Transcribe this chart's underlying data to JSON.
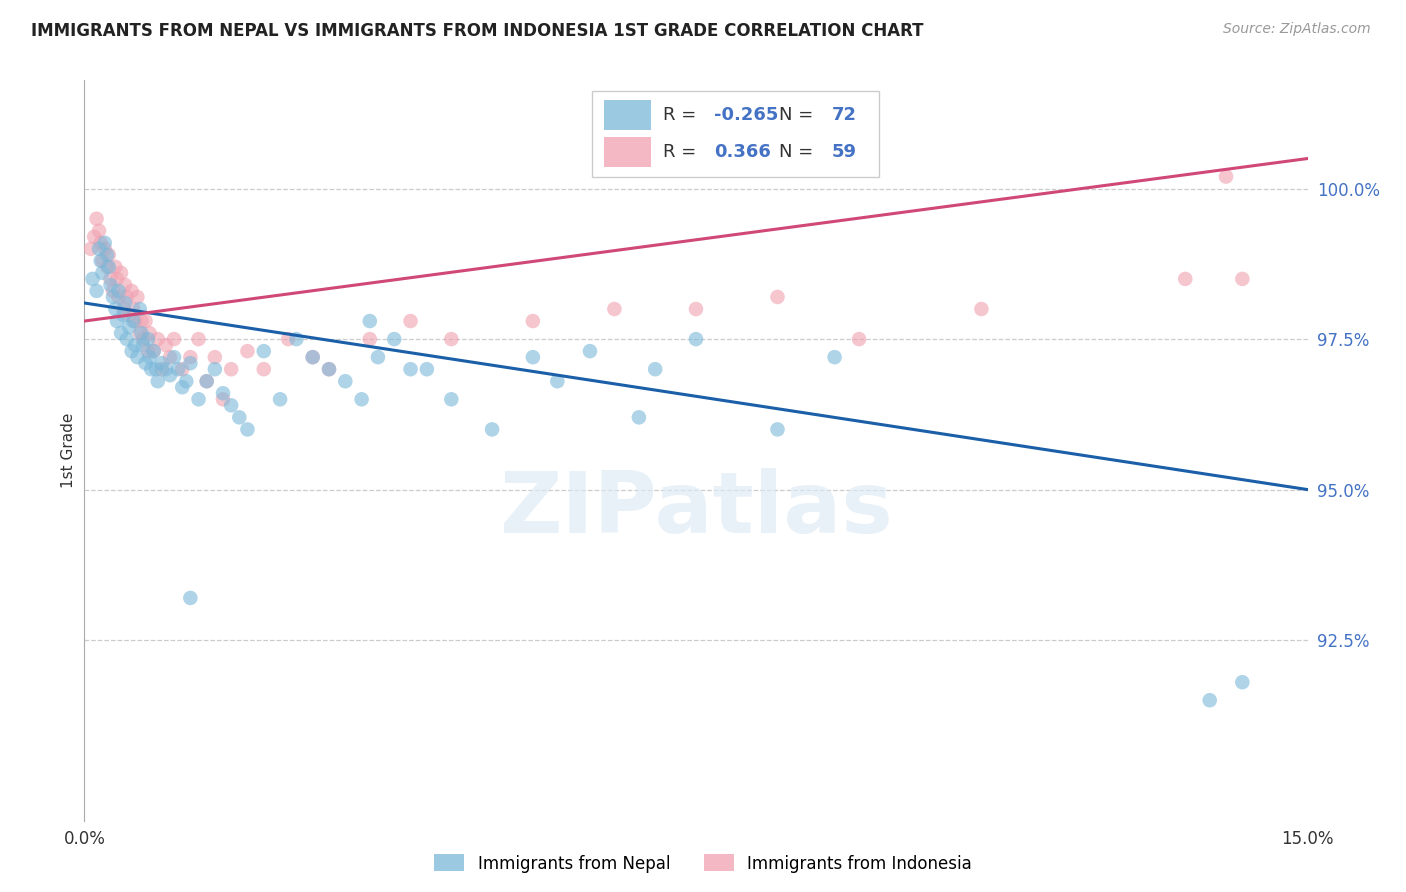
{
  "title": "IMMIGRANTS FROM NEPAL VS IMMIGRANTS FROM INDONESIA 1ST GRADE CORRELATION CHART",
  "source": "Source: ZipAtlas.com",
  "ylabel": "1st Grade",
  "yticks": [
    92.5,
    95.0,
    97.5,
    100.0
  ],
  "ytick_labels": [
    "92.5%",
    "95.0%",
    "97.5%",
    "100.0%"
  ],
  "xmin": 0.0,
  "xmax": 15.0,
  "ymin": 89.5,
  "ymax": 101.8,
  "legend_r_nepal": "-0.265",
  "legend_n_nepal": "72",
  "legend_r_indonesia": "0.366",
  "legend_n_indonesia": "59",
  "nepal_color": "#7ab8d9",
  "indonesia_color": "#f0a0b0",
  "nepal_line_color": "#1a5fa8",
  "indonesia_line_color": "#d04878",
  "nepal_line_x0": 0.0,
  "nepal_line_y0": 98.1,
  "nepal_line_x1": 15.0,
  "nepal_line_y1": 95.0,
  "indonesia_line_x0": 0.0,
  "indonesia_line_y0": 97.8,
  "indonesia_line_x1": 15.0,
  "indonesia_line_y1": 100.5,
  "nepal_x": [
    0.1,
    0.15,
    0.18,
    0.2,
    0.22,
    0.25,
    0.28,
    0.3,
    0.32,
    0.35,
    0.38,
    0.4,
    0.42,
    0.45,
    0.48,
    0.5,
    0.52,
    0.55,
    0.58,
    0.6,
    0.62,
    0.65,
    0.68,
    0.7,
    0.72,
    0.75,
    0.78,
    0.8,
    0.82,
    0.85,
    0.88,
    0.9,
    0.95,
    1.0,
    1.05,
    1.1,
    1.15,
    1.2,
    1.25,
    1.3,
    1.4,
    1.5,
    1.6,
    1.7,
    1.8,
    1.9,
    2.0,
    2.2,
    2.4,
    2.6,
    2.8,
    3.0,
    3.2,
    3.4,
    3.6,
    4.0,
    4.5,
    5.0,
    5.5,
    6.2,
    7.0,
    8.5,
    3.5,
    3.8,
    4.2,
    5.8,
    6.8,
    7.5,
    9.2,
    13.8,
    14.2,
    1.3
  ],
  "nepal_y": [
    98.5,
    98.3,
    99.0,
    98.8,
    98.6,
    99.1,
    98.9,
    98.7,
    98.4,
    98.2,
    98.0,
    97.8,
    98.3,
    97.6,
    97.9,
    98.1,
    97.5,
    97.7,
    97.3,
    97.8,
    97.4,
    97.2,
    98.0,
    97.6,
    97.4,
    97.1,
    97.5,
    97.2,
    97.0,
    97.3,
    97.0,
    96.8,
    97.1,
    97.0,
    96.9,
    97.2,
    97.0,
    96.7,
    96.8,
    97.1,
    96.5,
    96.8,
    97.0,
    96.6,
    96.4,
    96.2,
    96.0,
    97.3,
    96.5,
    97.5,
    97.2,
    97.0,
    96.8,
    96.5,
    97.2,
    97.0,
    96.5,
    96.0,
    97.2,
    97.3,
    97.0,
    96.0,
    97.8,
    97.5,
    97.0,
    96.8,
    96.2,
    97.5,
    97.2,
    91.5,
    91.8,
    93.2
  ],
  "indonesia_x": [
    0.08,
    0.12,
    0.15,
    0.18,
    0.2,
    0.22,
    0.25,
    0.28,
    0.3,
    0.32,
    0.35,
    0.38,
    0.4,
    0.42,
    0.45,
    0.48,
    0.5,
    0.52,
    0.55,
    0.58,
    0.6,
    0.62,
    0.65,
    0.68,
    0.7,
    0.72,
    0.75,
    0.78,
    0.8,
    0.85,
    0.9,
    0.95,
    1.0,
    1.05,
    1.1,
    1.2,
    1.3,
    1.4,
    1.5,
    1.6,
    1.7,
    1.8,
    2.0,
    2.2,
    2.5,
    2.8,
    3.0,
    3.5,
    4.0,
    4.5,
    5.5,
    6.5,
    7.5,
    8.5,
    9.5,
    11.0,
    13.5,
    14.0,
    14.2
  ],
  "indonesia_y": [
    99.0,
    99.2,
    99.5,
    99.3,
    99.1,
    98.8,
    99.0,
    98.7,
    98.9,
    98.5,
    98.3,
    98.7,
    98.5,
    98.2,
    98.6,
    98.0,
    98.4,
    98.2,
    97.9,
    98.3,
    98.0,
    97.8,
    98.2,
    97.6,
    97.8,
    97.5,
    97.8,
    97.3,
    97.6,
    97.3,
    97.5,
    97.0,
    97.4,
    97.2,
    97.5,
    97.0,
    97.2,
    97.5,
    96.8,
    97.2,
    96.5,
    97.0,
    97.3,
    97.0,
    97.5,
    97.2,
    97.0,
    97.5,
    97.8,
    97.5,
    97.8,
    98.0,
    98.0,
    98.2,
    97.5,
    98.0,
    98.5,
    100.2,
    98.5
  ]
}
